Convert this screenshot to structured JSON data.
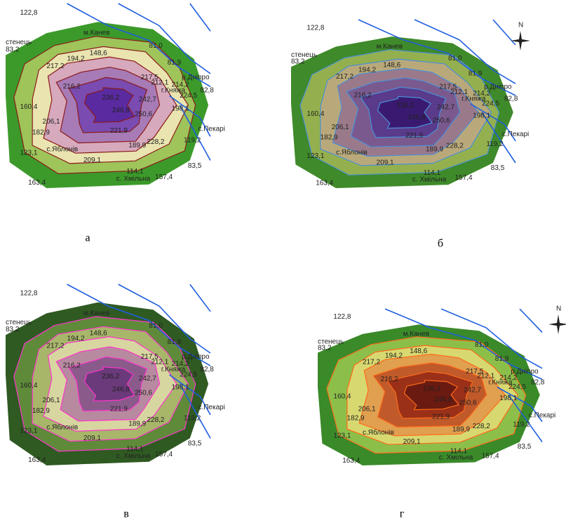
{
  "maps": [
    {
      "caption": "а",
      "labels": [
        "122,8",
        "м.Канев",
        "стенець",
        "83,2",
        "81,0",
        "148,6",
        "194,2",
        "81,9",
        "217,2",
        "р.Дніпро",
        "217,5",
        "212,1",
        "г.Княжа",
        "214,2",
        "82,8",
        "224,5",
        "216,2",
        "236,2",
        "242,7",
        "246,8",
        "250,6",
        "198,1",
        "160,4",
        "206,1",
        "182,9",
        "221,9",
        "с.Пекарі",
        "119,2",
        "с.Яблонів",
        "189,9",
        "228,2",
        "123,1",
        "209,1",
        "83,5",
        "114,1",
        "163,4",
        "с. Хмільна",
        "157,4"
      ]
    },
    {
      "caption": "б",
      "compass": "N",
      "labels": [
        "122,8",
        "м.Канев",
        "стенець",
        "83,2",
        "81,0",
        "148,6",
        "194,2",
        "81,9",
        "217,2",
        "р.Дніпро",
        "217,5",
        "212,1",
        "г.Княжа",
        "214,2",
        "82,8",
        "224,5",
        "216,2",
        "236,2",
        "242,7",
        "246,8",
        "250,6",
        "198,1",
        "160,4",
        "206,1",
        "182,9",
        "221,9",
        "с.Пекарі",
        "119,2",
        "с.Яблонів",
        "189,9",
        "228,2",
        "123,1",
        "209,1",
        "83,5",
        "114,1",
        "163,4",
        "с. Хмільна",
        "157,4"
      ]
    },
    {
      "caption": "в",
      "labels": [
        "122,8",
        "м.Канев",
        "стенець",
        "83,2",
        "81,0",
        "148,6",
        "194,2",
        "81,9",
        "217,2",
        "р.Дніпро",
        "217,5",
        "212,1",
        "г.Княжа",
        "214,2",
        "82,8",
        "224,5",
        "216,2",
        "236,2",
        "242,7",
        "246,8",
        "250,6",
        "198,1",
        "160,4",
        "206,1",
        "182,9",
        "221,9",
        "с.Пекарі",
        "119,2",
        "с.Яблонів",
        "189,9",
        "228,2",
        "123,1",
        "209,1",
        "83,5",
        "114,1",
        "163,4",
        "с. Хмільна",
        "157,4"
      ]
    },
    {
      "caption": "г",
      "compass": "N",
      "labels": [
        "122,8",
        "м.Канев",
        "стенець",
        "83,2",
        "81,0",
        "148,6",
        "194,2",
        "81,9",
        "217,2",
        "р.Дніпро",
        "217,5",
        "212,1",
        "г.Княжа",
        "214,2",
        "82,8",
        "224,5",
        "216,2",
        "236,2",
        "242,7",
        "246,8",
        "250,6",
        "198,1",
        "160,4",
        "206,1",
        "182,9",
        "221,9",
        "с.Пекарі",
        "119,2",
        "с.Яблонів",
        "189,9",
        "228,2",
        "123,1",
        "209,1",
        "83,5",
        "114,1",
        "163,4",
        "с. Хмільна",
        "157,4"
      ]
    }
  ]
}
